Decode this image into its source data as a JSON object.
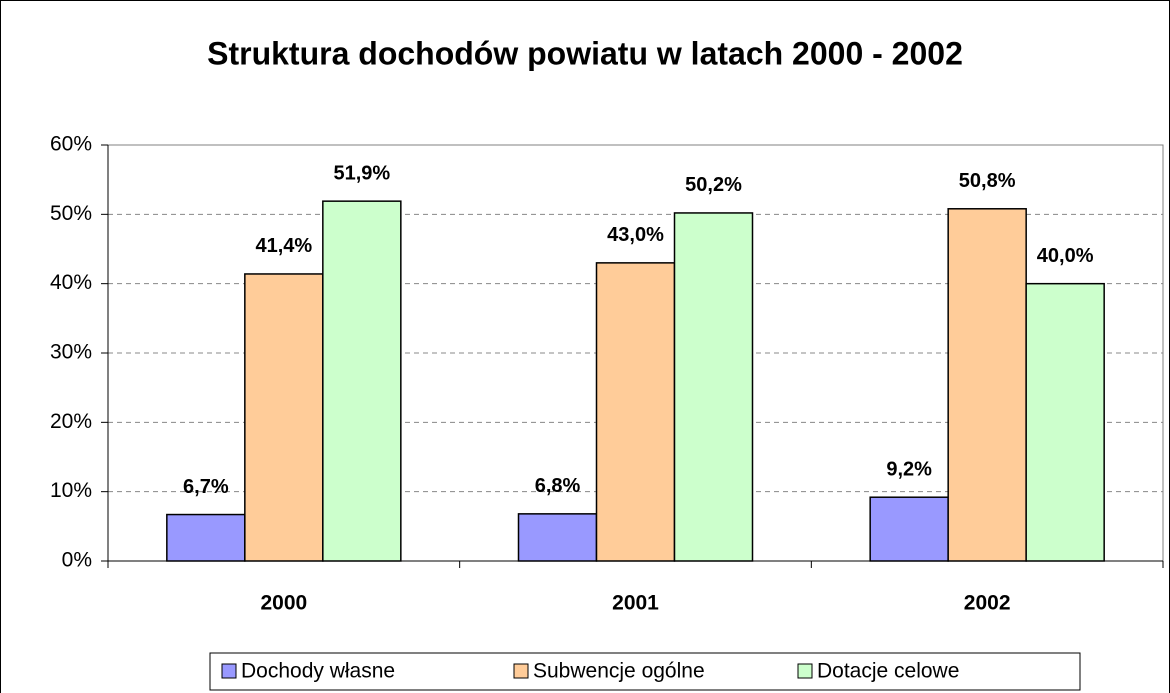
{
  "chart_data": {
    "type": "bar",
    "title": "Struktura dochodów powiatu w latach 2000 - 2002",
    "categories": [
      "2000",
      "2001",
      "2002"
    ],
    "series": [
      {
        "name": "Dochody własne",
        "color": "#9999ff",
        "values": [
          6.7,
          6.8,
          9.2
        ],
        "value_labels": [
          "6,7%",
          "6,8%",
          "9,2%"
        ]
      },
      {
        "name": "Subwencje ogólne",
        "color": "#ffcc99",
        "values": [
          41.4,
          43.0,
          50.8
        ],
        "value_labels": [
          "41,4%",
          "43,0%",
          "50,8%"
        ]
      },
      {
        "name": "Dotacje celowe",
        "color": "#ccffcc",
        "values": [
          51.9,
          50.2,
          40.0
        ],
        "value_labels": [
          "51,9%",
          "50,2%",
          "40,0%"
        ]
      }
    ],
    "ylim": [
      0,
      60
    ],
    "yticks": [
      {
        "value": 0,
        "label": "0%"
      },
      {
        "value": 10,
        "label": "10%"
      },
      {
        "value": 20,
        "label": "20%"
      },
      {
        "value": 30,
        "label": "30%"
      },
      {
        "value": 40,
        "label": "40%"
      },
      {
        "value": 50,
        "label": "50%"
      },
      {
        "value": 60,
        "label": "60%"
      }
    ],
    "grid": true,
    "legend": "bottom"
  }
}
